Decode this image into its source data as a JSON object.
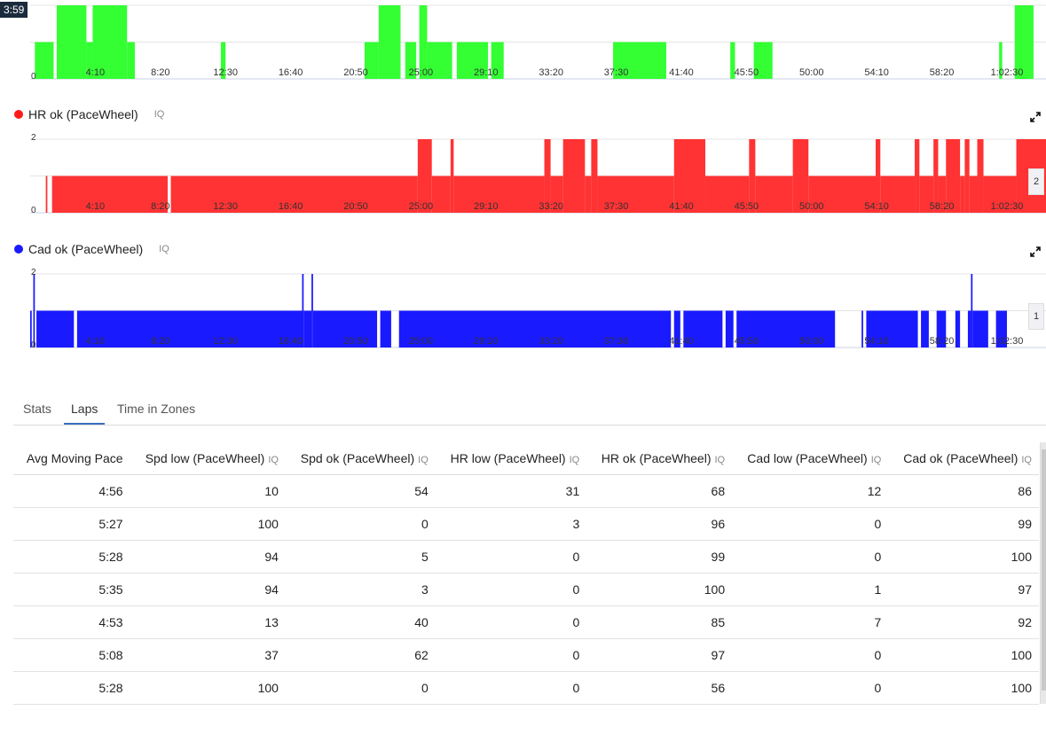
{
  "time_badge": "3:59",
  "x_tick_labels": [
    "4:10",
    "8:20",
    "12:30",
    "16:40",
    "20:50",
    "25:00",
    "29:10",
    "33:20",
    "37:30",
    "41:40",
    "45:50",
    "50:00",
    "54:10",
    "58:20",
    "1:02:30"
  ],
  "charts": [
    {
      "title": "",
      "iq": "",
      "color": "#33ff33",
      "ymin_label": "0",
      "ymax_label": "",
      "marker": "",
      "segments": [
        [
          0.3,
          1.5,
          1
        ],
        [
          1.7,
          3.6,
          2
        ],
        [
          3.6,
          4.0,
          1
        ],
        [
          4.0,
          6.2,
          2
        ],
        [
          6.2,
          6.7,
          1
        ],
        [
          12.2,
          12.5,
          1
        ],
        [
          21.4,
          22.3,
          1
        ],
        [
          22.3,
          23.7,
          2
        ],
        [
          24.0,
          24.7,
          1
        ],
        [
          24.9,
          25.4,
          2
        ],
        [
          25.4,
          27.0,
          1
        ],
        [
          27.3,
          29.3,
          1
        ],
        [
          29.5,
          30.3,
          1
        ],
        [
          37.3,
          40.7,
          1
        ],
        [
          44.8,
          45.1,
          1
        ],
        [
          46.3,
          47.5,
          1
        ],
        [
          62.0,
          62.2,
          1
        ],
        [
          63.0,
          64.2,
          2
        ]
      ]
    },
    {
      "title": "HR ok (PaceWheel)",
      "iq": "IQ",
      "color": "#ff3333",
      "ymin_label": "0",
      "ymax_label": "2",
      "marker": "2",
      "segments": [
        [
          1.0,
          1.1,
          1
        ],
        [
          1.4,
          8.8,
          1
        ],
        [
          9.0,
          24.8,
          1
        ],
        [
          24.8,
          25.7,
          2
        ],
        [
          25.7,
          26.9,
          1
        ],
        [
          26.9,
          27.1,
          2
        ],
        [
          27.1,
          32.9,
          1
        ],
        [
          32.9,
          33.3,
          2
        ],
        [
          33.3,
          34.1,
          1
        ],
        [
          34.1,
          35.5,
          2
        ],
        [
          35.5,
          35.9,
          1
        ],
        [
          35.9,
          36.3,
          2
        ],
        [
          36.3,
          41.2,
          1
        ],
        [
          41.2,
          43.2,
          2
        ],
        [
          43.2,
          46.0,
          1
        ],
        [
          46.0,
          46.4,
          2
        ],
        [
          46.4,
          48.8,
          1
        ],
        [
          48.8,
          49.8,
          2
        ],
        [
          49.8,
          54.1,
          1
        ],
        [
          54.1,
          54.4,
          2
        ],
        [
          54.4,
          56.6,
          1
        ],
        [
          56.6,
          56.9,
          2
        ],
        [
          56.9,
          57.8,
          1
        ],
        [
          57.8,
          58.1,
          2
        ],
        [
          58.1,
          58.6,
          1
        ],
        [
          58.6,
          59.5,
          2
        ],
        [
          59.5,
          59.8,
          1
        ],
        [
          59.8,
          60.1,
          2
        ],
        [
          60.1,
          60.6,
          1
        ],
        [
          60.6,
          61.0,
          2
        ],
        [
          61.0,
          63.1,
          1
        ],
        [
          63.1,
          65.0,
          2
        ]
      ]
    },
    {
      "title": "Cad ok (PaceWheel)",
      "iq": "IQ",
      "color": "#1a1aff",
      "ymin_label": "0",
      "ymax_label": "2",
      "marker": "1",
      "segments": [
        [
          0.0,
          0.1,
          1
        ],
        [
          0.2,
          0.3,
          2
        ],
        [
          0.4,
          2.8,
          1
        ],
        [
          3.0,
          17.4,
          1
        ],
        [
          17.4,
          17.5,
          2
        ],
        [
          17.5,
          18.0,
          1
        ],
        [
          18.0,
          18.1,
          2
        ],
        [
          18.1,
          22.2,
          1
        ],
        [
          22.4,
          23.1,
          1
        ],
        [
          23.6,
          41.0,
          1
        ],
        [
          41.2,
          41.6,
          1
        ],
        [
          41.8,
          44.3,
          1
        ],
        [
          44.5,
          45.0,
          1
        ],
        [
          45.2,
          51.5,
          1
        ],
        [
          53.2,
          53.3,
          1
        ],
        [
          53.5,
          56.8,
          1
        ],
        [
          57.0,
          57.5,
          1
        ],
        [
          58.0,
          58.6,
          1
        ],
        [
          59.2,
          59.5,
          1
        ],
        [
          60.0,
          60.2,
          1
        ],
        [
          60.2,
          60.3,
          2
        ],
        [
          60.3,
          61.3,
          1
        ],
        [
          61.8,
          62.5,
          1
        ]
      ]
    }
  ],
  "tabs": [
    {
      "label": "Stats",
      "active": false
    },
    {
      "label": "Laps",
      "active": true
    },
    {
      "label": "Time in Zones",
      "active": false
    }
  ],
  "table": {
    "columns": [
      {
        "label": "Avg Moving Pace",
        "iq": ""
      },
      {
        "label": "Spd low (PaceWheel)",
        "iq": "IQ"
      },
      {
        "label": "Spd ok (PaceWheel)",
        "iq": "IQ"
      },
      {
        "label": "HR low (PaceWheel)",
        "iq": "IQ"
      },
      {
        "label": "HR ok (PaceWheel)",
        "iq": "IQ"
      },
      {
        "label": "Cad low (PaceWheel)",
        "iq": "IQ"
      },
      {
        "label": "Cad ok (PaceWheel)",
        "iq": "IQ"
      }
    ],
    "rows": [
      [
        "4:56",
        "10",
        "54",
        "31",
        "68",
        "12",
        "86"
      ],
      [
        "5:27",
        "100",
        "0",
        "3",
        "96",
        "0",
        "99"
      ],
      [
        "5:28",
        "94",
        "5",
        "0",
        "99",
        "0",
        "100"
      ],
      [
        "5:35",
        "94",
        "3",
        "0",
        "100",
        "1",
        "97"
      ],
      [
        "4:53",
        "13",
        "40",
        "0",
        "85",
        "7",
        "92"
      ],
      [
        "5:08",
        "37",
        "62",
        "0",
        "97",
        "0",
        "100"
      ],
      [
        "5:28",
        "100",
        "0",
        "0",
        "56",
        "0",
        "100"
      ]
    ]
  }
}
